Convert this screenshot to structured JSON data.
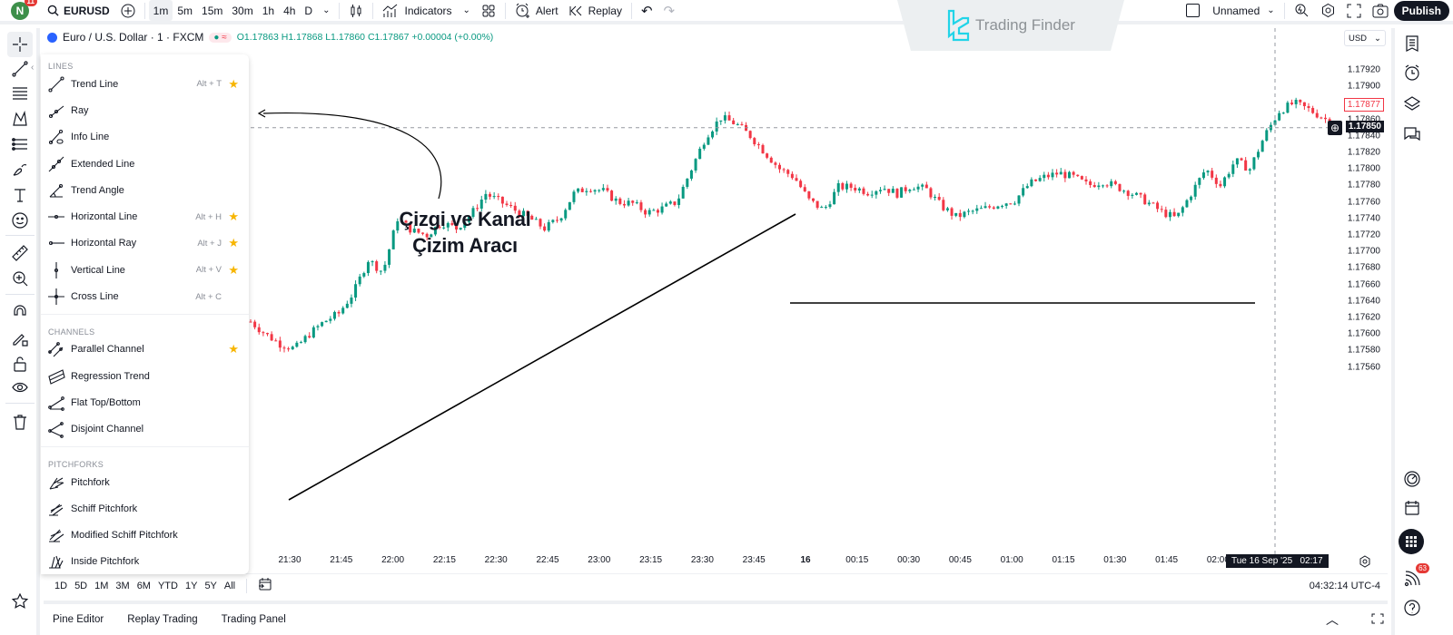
{
  "topbar": {
    "avatar_letter": "N",
    "avatar_badge": "11",
    "symbol": "EURUSD",
    "timeframes": [
      "1m",
      "5m",
      "15m",
      "30m",
      "1h",
      "4h",
      "D"
    ],
    "active_timeframe": "1m",
    "indicators_label": "Indicators",
    "alert_label": "Alert",
    "replay_label": "Replay",
    "layout_name": "Unnamed",
    "publish_label": "Publish"
  },
  "watermark": {
    "brand": "Trading Finder",
    "brand_color": "#21d4e8"
  },
  "legend": {
    "title": "Euro / U.S. Dollar · 1 · FXCM",
    "open": "O1.17863",
    "high": "H1.17868",
    "low": "L1.17860",
    "close": "C1.17867",
    "change": "+0.00004 (+0.00%)"
  },
  "currency": "USD",
  "drawing_menu": {
    "sections": [
      {
        "title": "LINES",
        "items": [
          {
            "label": "Trend Line",
            "shortcut": "Alt + T",
            "fav": true
          },
          {
            "label": "Ray",
            "shortcut": "",
            "fav": false
          },
          {
            "label": "Info Line",
            "shortcut": "",
            "fav": false
          },
          {
            "label": "Extended Line",
            "shortcut": "",
            "fav": false
          },
          {
            "label": "Trend Angle",
            "shortcut": "",
            "fav": false
          },
          {
            "label": "Horizontal Line",
            "shortcut": "Alt + H",
            "fav": true
          },
          {
            "label": "Horizontal Ray",
            "shortcut": "Alt + J",
            "fav": true
          },
          {
            "label": "Vertical Line",
            "shortcut": "Alt + V",
            "fav": true
          },
          {
            "label": "Cross Line",
            "shortcut": "Alt + C",
            "fav": false
          }
        ]
      },
      {
        "title": "CHANNELS",
        "items": [
          {
            "label": "Parallel Channel",
            "shortcut": "",
            "fav": true
          },
          {
            "label": "Regression Trend",
            "shortcut": "",
            "fav": false
          },
          {
            "label": "Flat Top/Bottom",
            "shortcut": "",
            "fav": false
          },
          {
            "label": "Disjoint Channel",
            "shortcut": "",
            "fav": false
          }
        ]
      },
      {
        "title": "PITCHFORKS",
        "items": [
          {
            "label": "Pitchfork",
            "shortcut": "",
            "fav": false
          },
          {
            "label": "Schiff Pitchfork",
            "shortcut": "",
            "fav": false
          },
          {
            "label": "Modified Schiff Pitchfork",
            "shortcut": "",
            "fav": false
          },
          {
            "label": "Inside Pitchfork",
            "shortcut": "",
            "fav": false
          }
        ]
      }
    ]
  },
  "annotation": {
    "line1": "Çizgi ve Kanal",
    "line2": "Çizim Aracı"
  },
  "price_axis": {
    "ticks": [
      "1.17920",
      "1.17900",
      "1.17880",
      "1.17860",
      "1.17840",
      "1.17820",
      "1.17800",
      "1.17780",
      "1.17760",
      "1.17740",
      "1.17720",
      "1.17700",
      "1.17680",
      "1.17660",
      "1.17640",
      "1.17620",
      "1.17600",
      "1.17580",
      "1.17560"
    ],
    "last_price": "1.17877",
    "crosshair_price": "1.17850"
  },
  "time_axis": {
    "ticks": [
      "21:30",
      "21:45",
      "22:00",
      "22:15",
      "22:30",
      "22:45",
      "23:00",
      "23:15",
      "23:30",
      "23:45",
      "16",
      "00:15",
      "00:30",
      "00:45",
      "01:00",
      "01:15",
      "01:30",
      "01:45",
      "02:00"
    ],
    "crosshair_label": "Tue 16 Sep '25   02:17"
  },
  "range_bar": {
    "ranges": [
      "1D",
      "5D",
      "1M",
      "3M",
      "6M",
      "YTD",
      "1Y",
      "5Y",
      "All"
    ],
    "clock": "04:32:14 UTC-4"
  },
  "bottom_tabs": [
    "Pine Editor",
    "Replay Trading",
    "Trading Panel"
  ],
  "right_sidebar": {
    "notifications_badge": "63"
  },
  "colors": {
    "up": "#089981",
    "down": "#f23645",
    "accent": "#2962ff"
  },
  "chart_path": [
    1.17615,
    1.176,
    1.17588,
    1.17582,
    1.176,
    1.17615,
    1.17625,
    1.1765,
    1.1769,
    1.17675,
    1.1774,
    1.17725,
    1.1772,
    1.17735,
    1.17728,
    1.17745,
    1.1777,
    1.1776,
    1.1775,
    1.1774,
    1.17728,
    1.1774,
    1.1777,
    1.17778,
    1.17773,
    1.1776,
    1.17758,
    1.17747,
    1.17752,
    1.1776,
    1.178,
    1.1784,
    1.17862,
    1.17855,
    1.1784,
    1.1782,
    1.178,
    1.1779,
    1.17762,
    1.1775,
    1.17778,
    1.17778,
    1.17772,
    1.17778,
    1.1777,
    1.1778,
    1.17775,
    1.17755,
    1.17742,
    1.17748,
    1.17752,
    1.17758,
    1.17762,
    1.17782,
    1.1779,
    1.17795,
    1.1779,
    1.1778,
    1.17785,
    1.17778,
    1.1777,
    1.1776,
    1.17748,
    1.1774,
    1.1777,
    1.178,
    1.1778,
    1.1781,
    1.178,
    1.1784,
    1.1787,
    1.1788,
    1.17872,
    1.17862,
    1.1785
  ]
}
